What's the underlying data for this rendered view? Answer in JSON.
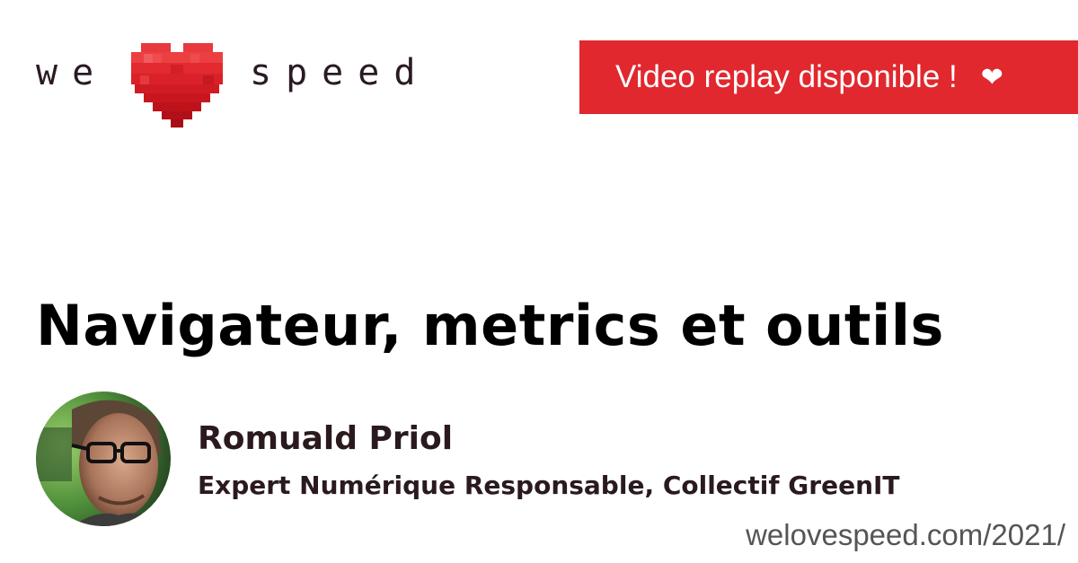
{
  "logo": {
    "word_left": "we",
    "word_right": "speed",
    "heart_icon": "pixel-heart-icon"
  },
  "banner": {
    "text": "Video replay disponible !",
    "icon_glyph": "❤",
    "icon": "heart-icon",
    "color": "#e0282e"
  },
  "talk": {
    "title": "Navigateur, metrics et outils"
  },
  "speaker": {
    "name": "Romuald Priol",
    "role": "Expert Numérique Responsable, Collectif GreenIT"
  },
  "footer": {
    "url": "welovespeed.com/2021/"
  }
}
